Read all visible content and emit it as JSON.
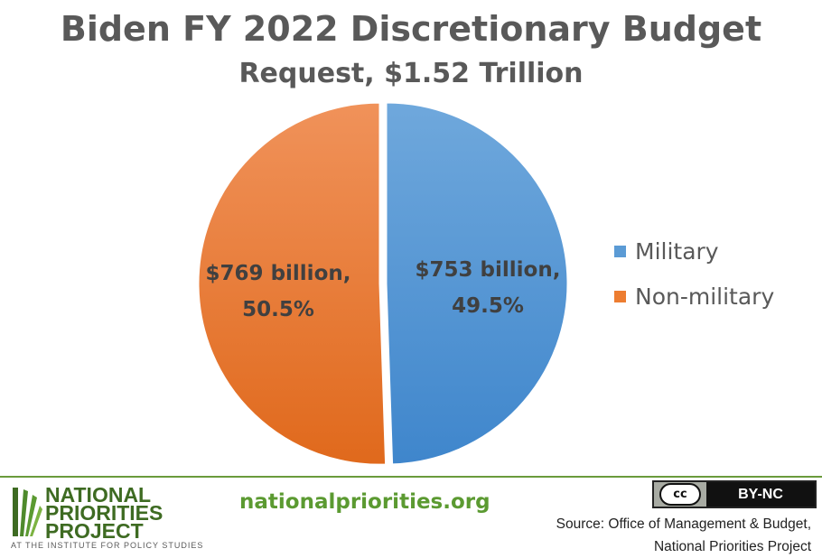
{
  "chart_data": {
    "type": "pie",
    "title": "Biden FY 2022 Discretionary Budget",
    "subtitle": "Request, $1.52 Trillion",
    "slices": [
      {
        "name": "Military",
        "value": 753,
        "percent": 49.5,
        "label_line1": "$753 billion,",
        "label_line2": "49.5%",
        "color": "#5b9bd5",
        "exploded": false
      },
      {
        "name": "Non-military",
        "value": 769,
        "percent": 50.5,
        "label_line1": "$769 billion,",
        "label_line2": "50.5%",
        "color": "#ed7d31",
        "exploded": true
      }
    ],
    "legend": {
      "placement": "right",
      "items": [
        {
          "label": "Military",
          "color": "#5b9bd5"
        },
        {
          "label": "Non-military",
          "color": "#ed7d31"
        }
      ]
    }
  },
  "footer": {
    "logo_line1": "NATIONAL",
    "logo_line2": "PRIORITIES",
    "logo_line3": "PROJECT",
    "logo_tagline": "AT THE INSTITUTE FOR POLICY STUDIES",
    "website": "nationalpriorities.org",
    "license_cc": "cc",
    "license_text": "BY-NC",
    "source_line1": "Source: Office of Management & Budget,",
    "source_line2": "National Priorities Project"
  },
  "colors": {
    "title": "#595959",
    "brand_green": "#5b9a31",
    "footer_rule": "#6a9b3c"
  }
}
